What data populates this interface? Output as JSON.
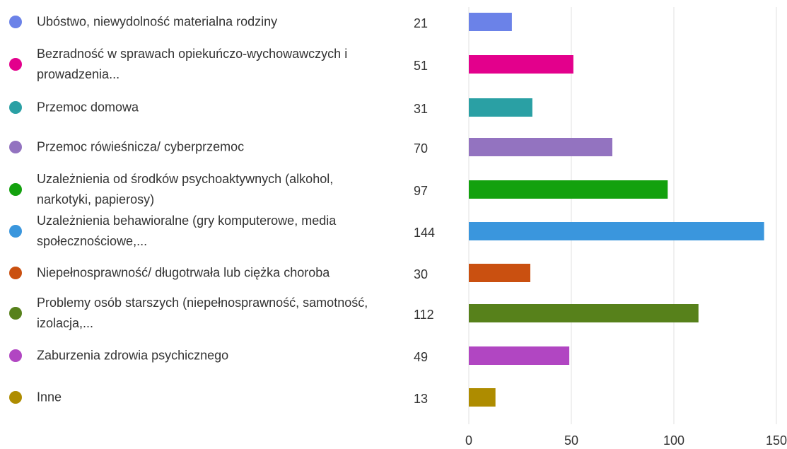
{
  "chart_data": {
    "type": "bar",
    "categories": [
      "Ubóstwo, niewydolność materialna rodziny",
      "Bezradność w sprawach opiekuńczo-wychowawczych i prowadzenia...",
      "Przemoc domowa",
      "Przemoc rówieśnicza/ cyberprzemoc",
      "Uzależnienia od środków psychoaktywnych (alkohol, narkotyki, papierosy)",
      "Uzależnienia behawioralne (gry komputerowe, media społecznościowe,...",
      "Niepełnosprawność/ długotrwała lub ciężka choroba",
      "Problemy osób starszych (niepełnosprawność, samotność, izolacja,...",
      "Zaburzenia zdrowia psychicznego",
      "Inne"
    ],
    "values": [
      21,
      51,
      31,
      70,
      97,
      144,
      30,
      112,
      49,
      13
    ],
    "colors": [
      "#6b82e8",
      "#e3008c",
      "#2aa0a4",
      "#9373c0",
      "#13a10e",
      "#3a96dd",
      "#ca5010",
      "#57811b",
      "#b146c2",
      "#ae8c00"
    ],
    "xlim": [
      0,
      150
    ],
    "xticks": [
      0,
      50,
      100,
      150
    ],
    "grid": true
  }
}
